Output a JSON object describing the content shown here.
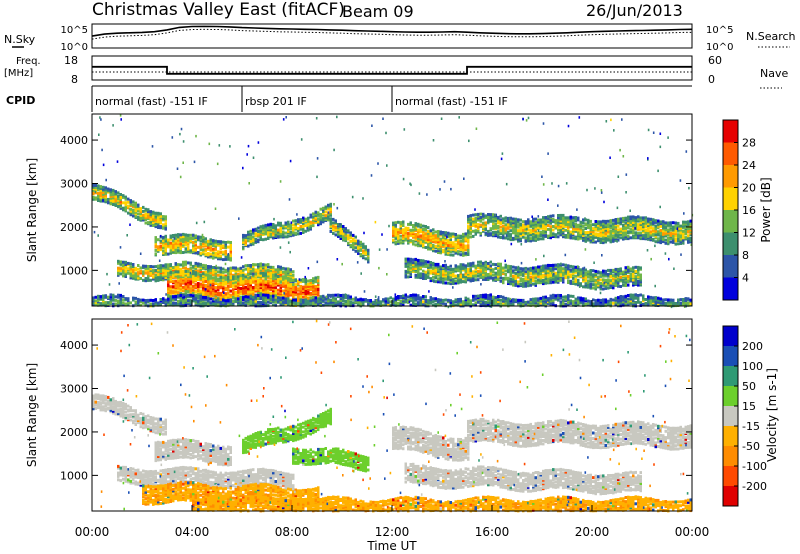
{
  "header": {
    "title": "Christmas Valley East (fitACF)",
    "beam": "Beam 09",
    "date": "26/Jun/2013"
  },
  "top_labels": {
    "nsky": "N.Sky",
    "freq_line1": "Freq.",
    "freq_line2": "[MHz]",
    "cpid": "CPID",
    "nsearch": "N.Search",
    "nave": "Nave"
  },
  "cpid_segments": [
    {
      "label": "normal (fast) -151 IF",
      "start_hour": 0,
      "end_hour": 6
    },
    {
      "label": "rbsp 201 IF",
      "start_hour": 6,
      "end_hour": 12
    },
    {
      "label": "normal (fast) -151 IF",
      "start_hour": 12,
      "end_hour": 24
    }
  ],
  "chart_data": [
    {
      "type": "line",
      "panel": "noise",
      "yscale": "log",
      "left_ticks": [
        "10^5",
        "10^0"
      ],
      "right_ticks": [
        "10^5",
        "10^0"
      ],
      "x": [
        0,
        0.5,
        1,
        1.5,
        2,
        2.5,
        3,
        3.5,
        4,
        4.5,
        5,
        5.5,
        6,
        6.5,
        7,
        7.5,
        8,
        8.5,
        9,
        9.5,
        10,
        10.5,
        11,
        11.5,
        12,
        12.5,
        13,
        13.5,
        14,
        14.5,
        15,
        15.5,
        16,
        16.5,
        17,
        17.5,
        18,
        18.5,
        19,
        19.5,
        20,
        20.5,
        21,
        21.5,
        22,
        22.5,
        23,
        23.5,
        24
      ],
      "series": [
        {
          "values": [
            300,
            800,
            1200,
            1500,
            1800,
            2500,
            6000,
            20000,
            30000,
            32000,
            30000,
            25000,
            18000,
            15000,
            12000,
            10000,
            9000,
            8000,
            7000,
            6000,
            5000,
            4000,
            3500,
            3000,
            2500,
            2200,
            2000,
            2000,
            2200,
            2500,
            2000,
            1500,
            1200,
            1000,
            900,
            900,
            1000,
            1200,
            1500,
            2000,
            2500,
            3000,
            3500,
            4000,
            4500,
            5000,
            6000,
            7000,
            8000
          ]
        }
      ]
    },
    {
      "type": "line",
      "panel": "frequency",
      "left_ticks": [
        "18",
        "8"
      ],
      "right_ticks": [
        "60",
        "0"
      ],
      "ylim": [
        8,
        18
      ],
      "x": [
        0,
        3,
        3,
        15,
        15,
        24
      ],
      "series": [
        {
          "values": [
            13.5,
            13.5,
            10.6,
            10.6,
            13.5,
            13.5
          ]
        }
      ]
    },
    {
      "type": "heatmap",
      "panel": "power",
      "ylabel": "Slant Range [km]",
      "yticks": [
        1000,
        2000,
        3000,
        4000
      ],
      "ylim": [
        180,
        4600
      ],
      "xlim": [
        0,
        24
      ],
      "colorbar_label": "Power [dB]",
      "colorbar_ticks": [
        28,
        24,
        20,
        16,
        12,
        8,
        4
      ],
      "colorbar_colors": [
        "#e60000",
        "#ff5a00",
        "#ff9a00",
        "#ffd200",
        "#6fb64a",
        "#3d8f6e",
        "#2c55a8",
        "#0000dd"
      ],
      "bands": [
        {
          "t0": 0.0,
          "r0": 2800,
          "t1": 3.0,
          "r1": 2100,
          "width": 150,
          "power": 20
        },
        {
          "t0": 2.5,
          "r0": 1600,
          "t1": 5.5,
          "r1": 1500,
          "width": 180,
          "power": 22
        },
        {
          "t0": 6.0,
          "r0": 1650,
          "t1": 9.5,
          "r1": 2300,
          "width": 160,
          "power": 18
        },
        {
          "t0": 9.5,
          "r0": 2000,
          "t1": 11.0,
          "r1": 1400,
          "width": 150,
          "power": 17
        },
        {
          "t0": 1.0,
          "r0": 1000,
          "t1": 8.0,
          "r1": 900,
          "width": 160,
          "power": 20
        },
        {
          "t0": 3.0,
          "r0": 650,
          "t1": 9.0,
          "r1": 550,
          "width": 260,
          "power": 28
        },
        {
          "t0": 12.0,
          "r0": 1850,
          "t1": 15.0,
          "r1": 1600,
          "width": 220,
          "power": 22
        },
        {
          "t0": 15.0,
          "r0": 2000,
          "t1": 24.0,
          "r1": 1900,
          "width": 240,
          "power": 18
        },
        {
          "t0": 12.5,
          "r0": 1000,
          "t1": 22.0,
          "r1": 800,
          "width": 180,
          "power": 17
        },
        {
          "t0": 0.0,
          "r0": 250,
          "t1": 24.0,
          "r1": 250,
          "width": 120,
          "power": 12
        }
      ]
    },
    {
      "type": "heatmap",
      "panel": "velocity",
      "ylabel": "Slant Range [km]",
      "yticks": [
        1000,
        2000,
        3000,
        4000
      ],
      "ylim": [
        180,
        4600
      ],
      "xlim": [
        0,
        24
      ],
      "xlabel": "Time UT",
      "xticks": [
        "00:00",
        "04:00",
        "08:00",
        "12:00",
        "16:00",
        "20:00",
        "00:00"
      ],
      "colorbar_label": "Velocity [m s-1]",
      "colorbar_ticks": [
        200,
        100,
        50,
        15,
        -15,
        -50,
        -100,
        -200
      ],
      "colorbar_colors": [
        "#0000cc",
        "#1a4fb5",
        "#2f9a74",
        "#6ccf2c",
        "#c8c8c0",
        "#ffb000",
        "#ff8c00",
        "#ff4a00",
        "#e00000"
      ],
      "bands": [
        {
          "t0": 0.0,
          "r0": 2700,
          "t1": 3.0,
          "r1": 2100,
          "width": 150,
          "velocity": 0
        },
        {
          "t0": 2.5,
          "r0": 1600,
          "t1": 5.5,
          "r1": 1500,
          "width": 180,
          "velocity": 0
        },
        {
          "t0": 6.0,
          "r0": 1650,
          "t1": 9.5,
          "r1": 2300,
          "width": 160,
          "velocity": 30
        },
        {
          "t0": 8.0,
          "r0": 1500,
          "t1": 11.0,
          "r1": 1300,
          "width": 160,
          "velocity": 30
        },
        {
          "t0": 1.0,
          "r0": 1000,
          "t1": 8.0,
          "r1": 900,
          "width": 160,
          "velocity": 0
        },
        {
          "t0": 2.0,
          "r0": 600,
          "t1": 9.0,
          "r1": 500,
          "width": 200,
          "velocity": -40
        },
        {
          "t0": 12.0,
          "r0": 1850,
          "t1": 15.0,
          "r1": 1600,
          "width": 220,
          "velocity": 0
        },
        {
          "t0": 15.0,
          "r0": 2000,
          "t1": 24.0,
          "r1": 1900,
          "width": 240,
          "velocity": 0
        },
        {
          "t0": 12.5,
          "r0": 1000,
          "t1": 22.0,
          "r1": 800,
          "width": 180,
          "velocity": 0
        },
        {
          "t0": 4.0,
          "r0": 280,
          "t1": 24.0,
          "r1": 280,
          "width": 160,
          "velocity": -40
        }
      ]
    }
  ]
}
